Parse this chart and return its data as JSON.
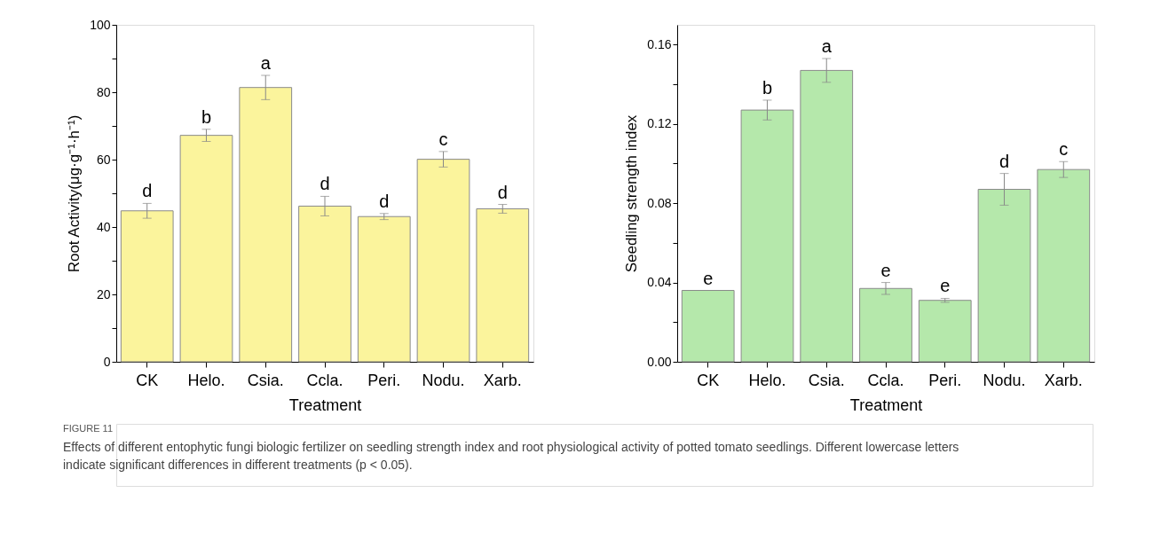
{
  "chart_data": [
    {
      "type": "bar",
      "categories": [
        "CK",
        "Helo.",
        "Csia.",
        "Ccla.",
        "Peri.",
        "Nodu.",
        "Xarb."
      ],
      "xlabel": "Treatment",
      "ylabel": "Root Activity(μg·g⁻¹·h⁻¹)",
      "series": [
        {
          "color": "#fbf49c",
          "values": [
            44.8,
            67.2,
            81.4,
            46.2,
            43.1,
            60.1,
            45.4
          ],
          "errors": [
            2.2,
            1.8,
            3.6,
            2.9,
            0.9,
            2.3,
            1.3
          ]
        }
      ],
      "ylim": [
        0,
        100
      ],
      "yticks": [
        0,
        {
          "value": 10,
          "label": null
        },
        20,
        {
          "value": 30,
          "label": null
        },
        40,
        {
          "value": 50,
          "label": null
        },
        60,
        {
          "value": 70,
          "label": null
        },
        80,
        {
          "value": 90,
          "label": null
        },
        100
      ],
      "grid": false,
      "legend": false,
      "annotations": [
        {
          "text": "d",
          "x": "CK",
          "y": 47.0
        },
        {
          "text": "b",
          "x": "Helo.",
          "y": 69.0
        },
        {
          "text": "a",
          "x": "Csia.",
          "y": 85.0
        },
        {
          "text": "d",
          "x": "Ccla.",
          "y": 49.1
        },
        {
          "text": "d",
          "x": "Peri.",
          "y": 44.0
        },
        {
          "text": "c",
          "x": "Nodu.",
          "y": 62.4
        },
        {
          "text": "d",
          "x": "Xarb.",
          "y": 46.7
        },
        "FIGURE 11",
        "Effects of different entophytic fungi biologic fertilizer on seedling strength index and root physiological activity of potted tomato seedlings. Different lowercase letters indicate significant differences in different treatments (p < 0.05)."
      ]
    },
    {
      "type": "bar",
      "categories": [
        "CK",
        "Helo.",
        "Csia.",
        "Ccla.",
        "Peri.",
        "Nodu.",
        "Xarb."
      ],
      "xlabel": "Treatment",
      "ylabel": "Seedling strength index",
      "series": [
        {
          "color": "#b5e8ab",
          "values": [
            0.036,
            0.127,
            0.147,
            0.037,
            0.031,
            0.087,
            0.097
          ],
          "errors": [
            null,
            0.005,
            0.006,
            0.003,
            0.001,
            0.008,
            0.004
          ]
        }
      ],
      "ylim": [
        0,
        0.17
      ],
      "yticks": [
        {
          "value": 0,
          "label": "0.00"
        },
        {
          "value": 0.02,
          "label": null
        },
        {
          "value": 0.04,
          "label": "0.04"
        },
        {
          "value": 0.06,
          "label": null
        },
        {
          "value": 0.08,
          "label": "0.08"
        },
        {
          "value": 0.1,
          "label": null
        },
        {
          "value": 0.12,
          "label": "0.12"
        },
        {
          "value": 0.14,
          "label": null
        },
        {
          "value": 0.16,
          "label": "0.16"
        }
      ],
      "grid": false,
      "legend": false,
      "annotations": [
        {
          "text": "e",
          "x": "CK",
          "y": 0.036
        },
        {
          "text": "b",
          "x": "Helo.",
          "y": 0.132
        },
        {
          "text": "a",
          "x": "Csia.",
          "y": 0.153
        },
        {
          "text": "e",
          "x": "Ccla.",
          "y": 0.04
        },
        {
          "text": "e",
          "x": "Peri.",
          "y": 0.032
        },
        {
          "text": "d",
          "x": "Nodu.",
          "y": 0.095
        },
        {
          "text": "c",
          "x": "Xarb.",
          "y": 0.101
        }
      ]
    }
  ]
}
